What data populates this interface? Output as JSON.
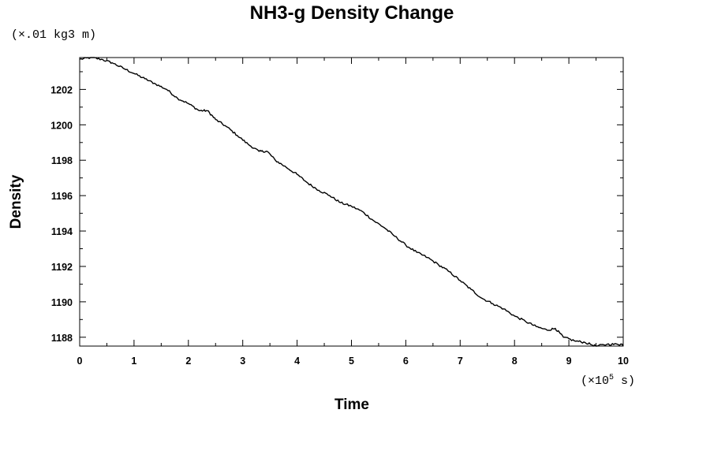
{
  "chart_data": {
    "type": "line",
    "title": "NH3-g Density Change",
    "ylabel": "Density",
    "yunit_prefix": "(×.01 kg3 m)",
    "xlabel": "Time",
    "xunit_prefix": "(×10",
    "xunit_exp": "5",
    "xunit_suffix": " s)",
    "xlim": [
      0,
      10
    ],
    "ylim": [
      1187.5,
      1203.8
    ],
    "x_ticks": [
      "0",
      "1",
      "2",
      "3",
      "4",
      "5",
      "6",
      "7",
      "8",
      "9",
      "10"
    ],
    "y_ticks": [
      "1188",
      "1190",
      "1192",
      "1194",
      "1196",
      "1198",
      "1200",
      "1202"
    ],
    "grid": false,
    "series": [
      {
        "x": [
          0,
          0.2,
          0.4,
          0.6,
          0.8,
          1.0,
          1.2,
          1.4,
          1.6,
          1.8,
          2.0,
          2.2,
          2.35,
          2.5,
          2.7,
          2.9,
          3.1,
          3.3,
          3.45,
          3.6,
          3.8,
          4.0,
          4.2,
          4.4,
          4.6,
          4.8,
          5.0,
          5.2,
          5.4,
          5.6,
          5.8,
          6.0,
          6.2,
          6.4,
          6.6,
          6.8,
          7.0,
          7.2,
          7.4,
          7.6,
          7.8,
          8.0,
          8.2,
          8.4,
          8.6,
          8.75,
          8.9,
          9.1,
          9.3,
          9.5,
          9.7,
          9.9,
          10.0
        ],
        "y": [
          1203.7,
          1203.8,
          1203.7,
          1203.5,
          1203.2,
          1202.9,
          1202.6,
          1202.3,
          1202.0,
          1201.5,
          1201.2,
          1200.8,
          1200.8,
          1200.3,
          1199.9,
          1199.4,
          1198.9,
          1198.5,
          1198.5,
          1198.0,
          1197.6,
          1197.2,
          1196.7,
          1196.3,
          1196.0,
          1195.6,
          1195.4,
          1195.1,
          1194.6,
          1194.2,
          1193.7,
          1193.2,
          1192.8,
          1192.5,
          1192.1,
          1191.7,
          1191.2,
          1190.7,
          1190.2,
          1189.9,
          1189.6,
          1189.2,
          1188.9,
          1188.6,
          1188.4,
          1188.5,
          1188.0,
          1187.8,
          1187.7,
          1187.5,
          1187.6,
          1187.6,
          1187.6
        ]
      }
    ]
  }
}
